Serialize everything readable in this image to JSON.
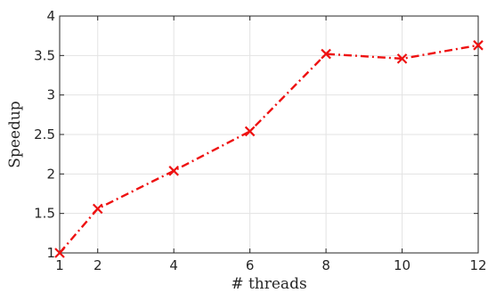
{
  "chart_data": {
    "type": "line",
    "xlabel": "# threads",
    "ylabel": "Speedup",
    "xlim": [
      1,
      12
    ],
    "ylim": [
      1,
      4
    ],
    "x_ticks": [
      1,
      2,
      4,
      6,
      8,
      10,
      12
    ],
    "y_ticks": [
      1,
      1.5,
      2,
      2.5,
      3,
      3.5,
      4
    ],
    "y_tick_labels": [
      "1",
      "1.5",
      "2",
      "2.5",
      "3",
      "3.5",
      "4"
    ],
    "grid": true,
    "series": [
      {
        "x": [
          1,
          2,
          4,
          6,
          8,
          10,
          12
        ],
        "values": [
          1.0,
          1.56,
          2.04,
          2.54,
          3.52,
          3.46,
          3.63
        ],
        "color": "#ee1111",
        "line_style": "dash-dot",
        "marker": "x"
      }
    ]
  }
}
